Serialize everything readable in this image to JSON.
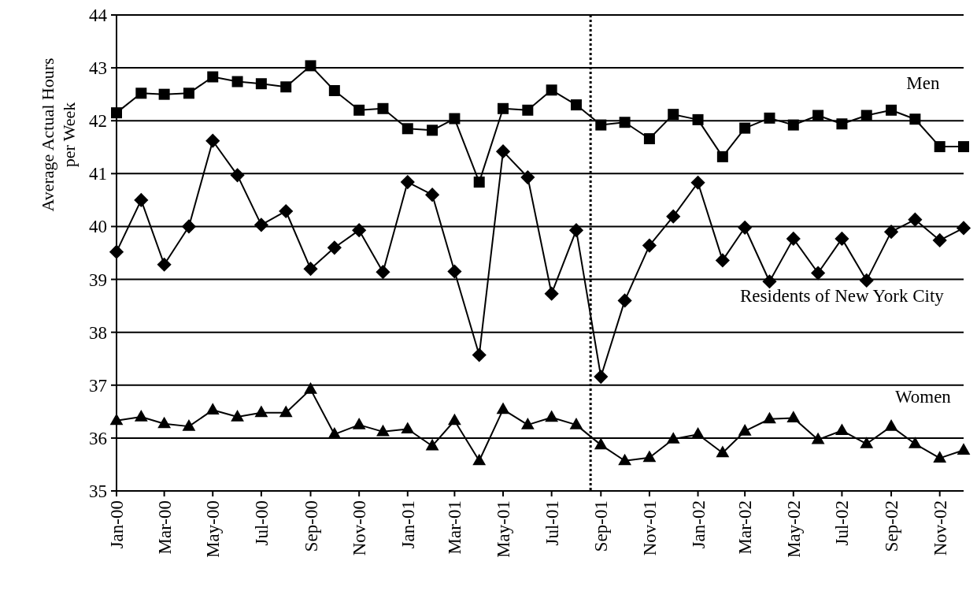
{
  "chart_data": {
    "type": "line",
    "ylabel": "Average Actual Hours per Week",
    "x": [
      "2000-01",
      "2000-02",
      "2000-03",
      "2000-04",
      "2000-05",
      "2000-06",
      "2000-07",
      "2000-08",
      "2000-09",
      "2000-10",
      "2000-11",
      "2000-12",
      "2001-01",
      "2001-02",
      "2001-03",
      "2001-04",
      "2001-05",
      "2001-06",
      "2001-07",
      "2001-08",
      "2001-09",
      "2001-10",
      "2001-11",
      "2001-12",
      "2002-01",
      "2002-02",
      "2002-03",
      "2002-04",
      "2002-05",
      "2002-06",
      "2002-07",
      "2002-08",
      "2002-09",
      "2002-10",
      "2002-11",
      "2002-12"
    ],
    "series": [
      {
        "name": "Men",
        "color": "#000000",
        "marker": "square",
        "values": [
          42.15,
          42.52,
          42.5,
          42.52,
          42.83,
          42.74,
          42.7,
          42.64,
          43.04,
          42.57,
          42.2,
          42.23,
          41.85,
          41.82,
          42.04,
          40.84,
          42.23,
          42.2,
          42.58,
          42.3,
          41.92,
          41.97,
          41.66,
          42.12,
          42.02,
          41.32,
          41.86,
          42.05,
          41.92,
          42.1,
          41.94,
          42.1,
          42.2,
          42.03,
          41.51,
          41.51
        ]
      },
      {
        "name": "Residents of New York City",
        "color": "#000000",
        "marker": "diamond",
        "values": [
          39.52,
          40.5,
          39.28,
          40.0,
          41.62,
          40.97,
          40.03,
          40.29,
          39.2,
          39.6,
          39.93,
          39.14,
          40.84,
          40.6,
          39.15,
          37.57,
          41.42,
          40.93,
          38.73,
          39.93,
          37.16,
          38.6,
          39.64,
          40.19,
          40.83,
          39.36,
          39.98,
          38.96,
          39.77,
          39.12,
          39.77,
          38.98,
          39.9,
          40.13,
          39.74,
          39.97
        ]
      },
      {
        "name": "Women",
        "color": "#000000",
        "marker": "triangle",
        "values": [
          36.33,
          36.4,
          36.27,
          36.22,
          36.53,
          36.4,
          36.48,
          36.48,
          36.92,
          36.07,
          36.25,
          36.12,
          36.17,
          35.85,
          36.33,
          35.57,
          36.54,
          36.25,
          36.39,
          36.25,
          35.87,
          35.57,
          35.63,
          35.98,
          36.07,
          35.72,
          36.13,
          36.36,
          36.38,
          35.97,
          36.14,
          35.89,
          36.22,
          35.89,
          35.62,
          35.77
        ]
      }
    ],
    "xlim": [
      "2000-01",
      "2002-12"
    ],
    "xticks": [
      {
        "value": "2000-01",
        "label": "Jan-00"
      },
      {
        "value": "2000-03",
        "label": "Mar-00"
      },
      {
        "value": "2000-05",
        "label": "May-00"
      },
      {
        "value": "2000-07",
        "label": "Jul-00"
      },
      {
        "value": "2000-09",
        "label": "Sep-00"
      },
      {
        "value": "2000-11",
        "label": "Nov-00"
      },
      {
        "value": "2001-01",
        "label": "Jan-01"
      },
      {
        "value": "2001-03",
        "label": "Mar-01"
      },
      {
        "value": "2001-05",
        "label": "May-01"
      },
      {
        "value": "2001-07",
        "label": "Jul-01"
      },
      {
        "value": "2001-09",
        "label": "Sep-01"
      },
      {
        "value": "2001-11",
        "label": "Nov-01"
      },
      {
        "value": "2002-01",
        "label": "Jan-02"
      },
      {
        "value": "2002-03",
        "label": "Mar-02"
      },
      {
        "value": "2002-05",
        "label": "May-02"
      },
      {
        "value": "2002-07",
        "label": "Jul-02"
      },
      {
        "value": "2002-09",
        "label": "Sep-02"
      },
      {
        "value": "2002-11",
        "label": "Nov-02"
      }
    ],
    "ylim": [
      35,
      44
    ],
    "yticks": [
      35,
      36,
      37,
      38,
      39,
      40,
      41,
      42,
      43,
      44
    ],
    "grid": "y",
    "ref_lines": [
      {
        "axis": "x",
        "value": "2001-08-19",
        "color": "#000000",
        "line_style": "dotted"
      }
    ],
    "line_style": "solid"
  }
}
